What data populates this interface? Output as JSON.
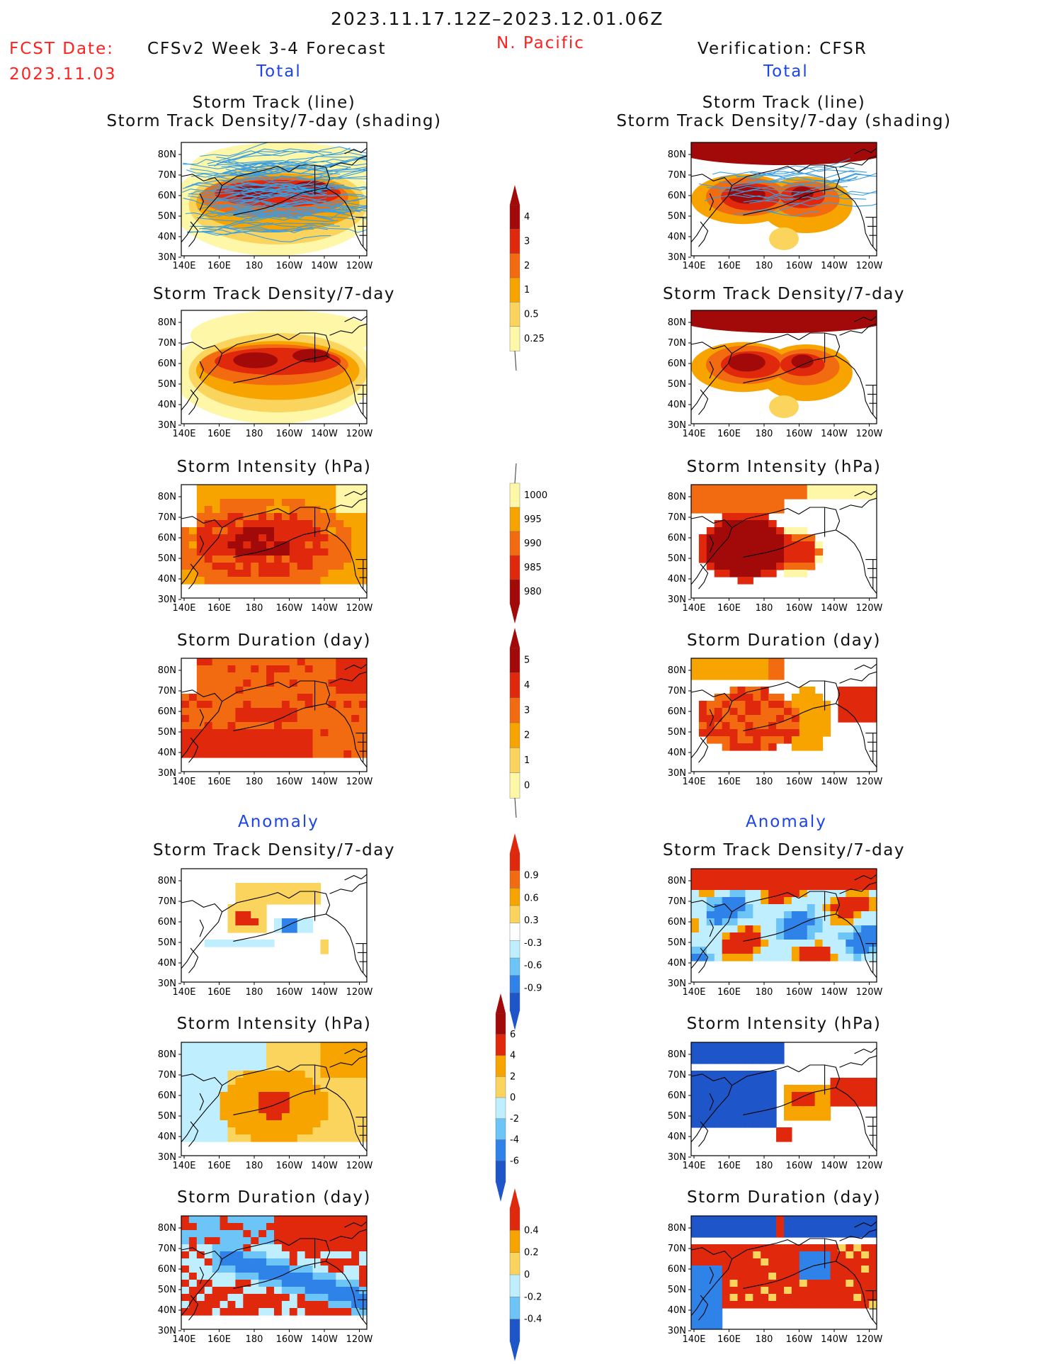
{
  "header": {
    "date_range": "2023.11.17.12Z–2023.12.01.06Z",
    "region": "N. Pacific",
    "fcst_label": "FCST Date:",
    "fcst_date": "2023.11.03",
    "forecast_title": "CFSv2 Week 3-4 Forecast",
    "verification_title": "Verification: CFSR",
    "total_label": "Total",
    "anomaly_label": "Anomaly"
  },
  "panel_titles": {
    "track_line": "Storm Track (line)",
    "track_shading": "Storm Track Density/7-day (shading)",
    "density": "Storm Track Density/7-day",
    "intensity": "Storm Intensity (hPa)",
    "duration": "Storm Duration (day)"
  },
  "colors": {
    "light_yellow": "#fff7a8",
    "yellow": "#fbd45e",
    "orange": "#f8a400",
    "dark_orange": "#f26b10",
    "red": "#e0280c",
    "dark_red": "#a20a0a",
    "light_blue": "#bfeeff",
    "sky_blue": "#6cc4f7",
    "mid_blue": "#2f83e8",
    "dark_blue": "#1e55c8",
    "track_line": "#3a9ee0"
  },
  "chart_data": [
    {
      "type": "heatmap",
      "id": "fcst-total-track",
      "title": "Storm Track (line) / Storm Track Density/7-day (shading)",
      "xlabel": "",
      "ylabel": "",
      "x_ticks": [
        "140E",
        "160E",
        "180",
        "160W",
        "140W",
        "120W"
      ],
      "y_ticks": [
        "80N",
        "70N",
        "60N",
        "50N",
        "40N",
        "30N"
      ],
      "colorbar": "density"
    },
    {
      "type": "heatmap",
      "id": "fcst-total-density",
      "title": "Storm Track Density/7-day",
      "x_ticks": [
        "140E",
        "160E",
        "180",
        "160W",
        "140W",
        "120W"
      ],
      "y_ticks": [
        "80N",
        "70N",
        "60N",
        "50N",
        "40N",
        "30N"
      ],
      "colorbar": "density"
    },
    {
      "type": "heatmap",
      "id": "fcst-total-intensity",
      "title": "Storm Intensity (hPa)",
      "x_ticks": [
        "140E",
        "160E",
        "180",
        "160W",
        "140W",
        "120W"
      ],
      "y_ticks": [
        "80N",
        "70N",
        "60N",
        "50N",
        "40N",
        "30N"
      ],
      "colorbar": "intensity"
    },
    {
      "type": "heatmap",
      "id": "fcst-total-duration",
      "title": "Storm Duration (day)",
      "x_ticks": [
        "140E",
        "160E",
        "180",
        "160W",
        "140W",
        "120W"
      ],
      "y_ticks": [
        "80N",
        "70N",
        "60N",
        "50N",
        "40N",
        "30N"
      ],
      "colorbar": "duration"
    },
    {
      "type": "heatmap",
      "id": "ver-total-track",
      "title": "Storm Track (line) / Storm Track Density/7-day (shading)",
      "colorbar": "density"
    },
    {
      "type": "heatmap",
      "id": "ver-total-density",
      "title": "Storm Track Density/7-day",
      "colorbar": "density"
    },
    {
      "type": "heatmap",
      "id": "ver-total-intensity",
      "title": "Storm Intensity (hPa)",
      "colorbar": "intensity"
    },
    {
      "type": "heatmap",
      "id": "ver-total-duration",
      "title": "Storm Duration (day)",
      "colorbar": "duration"
    },
    {
      "type": "heatmap",
      "id": "fcst-anom-density",
      "title": "Storm Track Density/7-day",
      "colorbar": "anom_density"
    },
    {
      "type": "heatmap",
      "id": "fcst-anom-intensity",
      "title": "Storm Intensity (hPa)",
      "colorbar": "anom_intensity"
    },
    {
      "type": "heatmap",
      "id": "fcst-anom-duration",
      "title": "Storm Duration (day)",
      "colorbar": "anom_duration"
    },
    {
      "type": "heatmap",
      "id": "ver-anom-density",
      "title": "Storm Track Density/7-day",
      "colorbar": "anom_density"
    },
    {
      "type": "heatmap",
      "id": "ver-anom-intensity",
      "title": "Storm Intensity (hPa)",
      "colorbar": "anom_intensity"
    },
    {
      "type": "heatmap",
      "id": "ver-anom-duration",
      "title": "Storm Duration (day)",
      "colorbar": "anom_duration"
    }
  ],
  "axes": {
    "x_ticks": [
      "140E",
      "160E",
      "180",
      "160W",
      "140W",
      "120W"
    ],
    "y_ticks": [
      "80N",
      "70N",
      "60N",
      "50N",
      "40N",
      "30N"
    ]
  },
  "colorbars": {
    "density": {
      "labels": [
        "4",
        "3",
        "2",
        "1",
        "0.5",
        "0.25"
      ],
      "colors": [
        "#a20a0a",
        "#e0280c",
        "#f26b10",
        "#f8a400",
        "#fbd45e",
        "#fff7a8"
      ]
    },
    "intensity": {
      "labels": [
        "1000",
        "995",
        "990",
        "985",
        "980"
      ],
      "colors": [
        "#fff7a8",
        "#f8a400",
        "#f26b10",
        "#e0280c",
        "#a20a0a"
      ]
    },
    "duration": {
      "labels": [
        "5",
        "4",
        "3",
        "2",
        "1",
        "0"
      ],
      "colors": [
        "#a20a0a",
        "#e0280c",
        "#f26b10",
        "#f8a400",
        "#fbd45e",
        "#fff7a8"
      ]
    },
    "anom_density": {
      "labels": [
        "0.9",
        "0.6",
        "0.3",
        "-0.3",
        "-0.6",
        "-0.9"
      ],
      "colors": [
        "#e0280c",
        "#f26b10",
        "#f8a400",
        "#fbd45e",
        "#ffffff",
        "#bfeeff",
        "#6cc4f7",
        "#2f83e8",
        "#1e55c8"
      ]
    },
    "anom_intensity": {
      "labels": [
        "6",
        "4",
        "2",
        "0",
        "-2",
        "-4",
        "-6"
      ],
      "colors": [
        "#a20a0a",
        "#e0280c",
        "#f8a400",
        "#fbd45e",
        "#bfeeff",
        "#6cc4f7",
        "#2f83e8",
        "#1e55c8"
      ]
    },
    "anom_duration": {
      "labels": [
        "0.4",
        "0.2",
        "0",
        "-0.2",
        "-0.4"
      ],
      "colors": [
        "#e0280c",
        "#f8a400",
        "#fbd45e",
        "#bfeeff",
        "#6cc4f7",
        "#1e55c8"
      ]
    }
  }
}
